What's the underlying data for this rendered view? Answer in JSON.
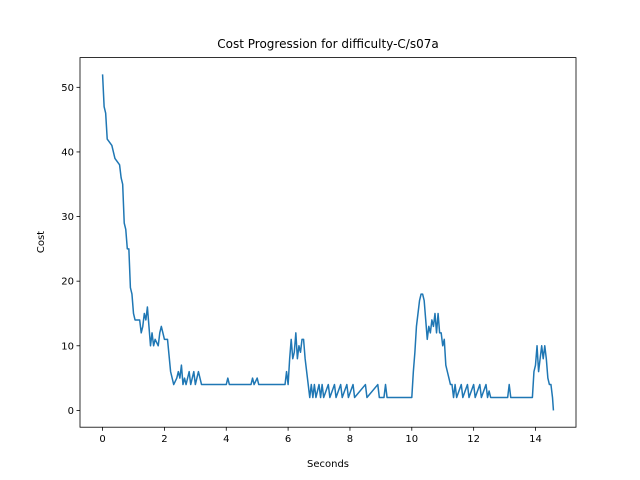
{
  "chart_data": {
    "type": "line",
    "title": "Cost Progression for difficulty-C/s07a",
    "x_label": "Seconds",
    "y_label": "Cost",
    "color": "#1f77b4",
    "x": [
      0,
      0.05,
      0.1,
      0.15,
      0.3,
      0.4,
      0.55,
      0.6,
      0.65,
      0.7,
      0.75,
      0.8,
      0.85,
      0.9,
      0.95,
      1.0,
      1.05,
      1.2,
      1.25,
      1.3,
      1.35,
      1.4,
      1.45,
      1.5,
      1.55,
      1.6,
      1.65,
      1.7,
      1.8,
      1.85,
      1.9,
      1.95,
      2.0,
      2.1,
      2.2,
      2.3,
      2.4,
      2.45,
      2.5,
      2.55,
      2.6,
      2.65,
      2.7,
      2.8,
      2.85,
      2.95,
      3.0,
      3.1,
      3.2,
      4.0,
      4.05,
      4.1,
      4.8,
      4.85,
      4.9,
      5.0,
      5.05,
      5.9,
      5.95,
      6.0,
      6.05,
      6.1,
      6.15,
      6.2,
      6.25,
      6.3,
      6.35,
      6.4,
      6.45,
      6.5,
      6.55,
      6.6,
      6.65,
      6.7,
      6.75,
      6.8,
      6.85,
      6.9,
      7.0,
      7.05,
      7.1,
      7.15,
      7.3,
      7.35,
      7.5,
      7.55,
      7.7,
      7.75,
      7.9,
      7.95,
      8.1,
      8.15,
      8.5,
      8.55,
      8.9,
      8.95,
      9.1,
      9.15,
      9.2,
      9.9,
      10.0,
      10.05,
      10.1,
      10.15,
      10.2,
      10.25,
      10.3,
      10.35,
      10.4,
      10.45,
      10.5,
      10.55,
      10.6,
      10.65,
      10.7,
      10.75,
      10.8,
      10.85,
      10.9,
      10.95,
      11.0,
      11.05,
      11.1,
      11.15,
      11.2,
      11.25,
      11.3,
      11.35,
      11.4,
      11.45,
      11.6,
      11.65,
      11.8,
      11.85,
      12.0,
      12.05,
      12.2,
      12.25,
      12.4,
      12.45,
      12.5,
      12.55,
      13.1,
      13.15,
      13.2,
      13.9,
      13.95,
      14.0,
      14.05,
      14.1,
      14.15,
      14.2,
      14.25,
      14.3,
      14.35,
      14.4,
      14.45,
      14.5,
      14.55,
      14.58
    ],
    "values": [
      52,
      47,
      46,
      42,
      41,
      39,
      38,
      36,
      35,
      29,
      28,
      25,
      25,
      19,
      18,
      15,
      14,
      14,
      12,
      13,
      15,
      14,
      16,
      13,
      10,
      12,
      10,
      11,
      10,
      12,
      13,
      12,
      11,
      11,
      6,
      4,
      5,
      6,
      5,
      7,
      4,
      5,
      4,
      6,
      4,
      6,
      4,
      6,
      4,
      4,
      5,
      4,
      4,
      5,
      4,
      5,
      4,
      4,
      6,
      4,
      8,
      11,
      8,
      9,
      12,
      8,
      10,
      9,
      11,
      11,
      8,
      6,
      4,
      2,
      4,
      2,
      4,
      2,
      4,
      2,
      4,
      2,
      4,
      2,
      4,
      2,
      4,
      2,
      4,
      2,
      4,
      2,
      4,
      2,
      4,
      2,
      2,
      4,
      2,
      2,
      2,
      6,
      9,
      13,
      15,
      17,
      18,
      18,
      17,
      14,
      11,
      13,
      12,
      14,
      13,
      15,
      12,
      15,
      12,
      12,
      10,
      11,
      7,
      6,
      5,
      4,
      4,
      2,
      4,
      2,
      4,
      2,
      4,
      2,
      4,
      2,
      4,
      2,
      4,
      2,
      3,
      2,
      2,
      4,
      2,
      2,
      6,
      7,
      10,
      6,
      8,
      10,
      8,
      10,
      8,
      5,
      4,
      4,
      2,
      0
    ],
    "xlim": [
      -0.73,
      15.31
    ],
    "ylim": [
      -2.6,
      54.6
    ],
    "xticks": [
      0,
      2,
      4,
      6,
      8,
      10,
      12,
      14
    ],
    "yticks": [
      0,
      10,
      20,
      30,
      40,
      50
    ]
  }
}
